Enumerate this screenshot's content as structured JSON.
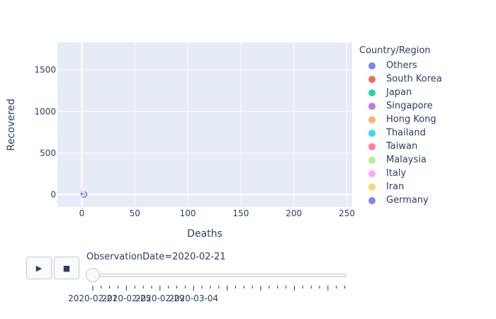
{
  "chart_data": {
    "type": "scatter",
    "title": "",
    "xlabel": "Deaths",
    "ylabel": "Recovered",
    "xlim": [
      -23,
      255
    ],
    "ylim": [
      -150,
      1830
    ],
    "x_ticks": [
      0,
      50,
      100,
      150,
      200,
      250
    ],
    "y_ticks": [
      0,
      500,
      1000,
      1500
    ],
    "grid": true,
    "legend_title": "Country/Region",
    "legend_position": "right",
    "series": [
      {
        "name": "Others",
        "color": "#636efa",
        "x": [
          2
        ],
        "y": [
          1
        ],
        "size": 9
      },
      {
        "name": "South Korea",
        "color": "#EF553B",
        "x": [
          1
        ],
        "y": [
          16
        ],
        "size": 3
      },
      {
        "name": "Japan",
        "color": "#00cc96",
        "x": [
          1
        ],
        "y": [
          18
        ],
        "size": 3
      },
      {
        "name": "Singapore",
        "color": "#ab63fa",
        "x": [
          0
        ],
        "y": [
          34
        ],
        "size": 3
      },
      {
        "name": "Hong Kong",
        "color": "#FFA15A",
        "x": [
          1
        ],
        "y": [
          6
        ],
        "size": 3
      },
      {
        "name": "Thailand",
        "color": "#19d3f3",
        "x": [
          0
        ],
        "y": [
          17
        ],
        "size": 3
      },
      {
        "name": "Taiwan",
        "color": "#FF6692",
        "x": [
          1
        ],
        "y": [
          2
        ],
        "size": 3
      },
      {
        "name": "Malaysia",
        "color": "#B6E880",
        "x": [
          0
        ],
        "y": [
          15
        ],
        "size": 3
      },
      {
        "name": "Italy",
        "color": "#FF97FF",
        "x": [
          0
        ],
        "y": [
          0
        ],
        "size": 3
      },
      {
        "name": "Iran",
        "color": "#FECB52",
        "x": [
          2
        ],
        "y": [
          0
        ],
        "size": 3
      },
      {
        "name": "Germany",
        "color": "#636efa",
        "x": [
          0
        ],
        "y": [
          9
        ],
        "size": 3
      }
    ]
  },
  "animation": {
    "play_icon": "play-icon",
    "play_symbol": "▶",
    "stop_icon": "stop-icon",
    "stop_symbol": "■",
    "current_label": "ObservationDate=2020-02-21",
    "slider_value": 0,
    "tick_labels": [
      "2020-02-21",
      "2020-02-25",
      "2020-02-29",
      "2020-03-04"
    ]
  }
}
